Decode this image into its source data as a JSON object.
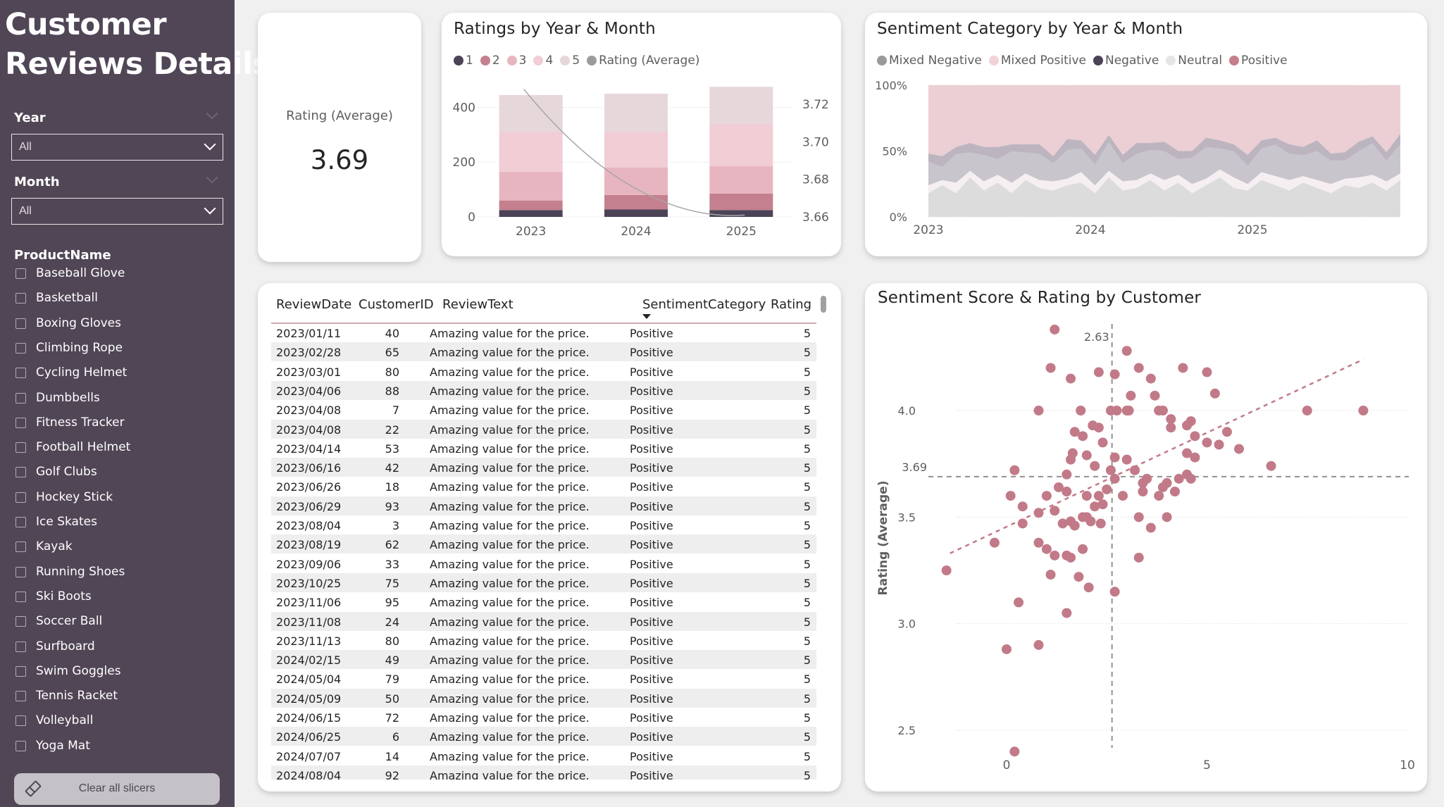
{
  "sidebar": {
    "title_line1": "Customer",
    "title_line2": "Reviews Details",
    "year_label": "Year",
    "year_value": "All",
    "month_label": "Month",
    "month_value": "All",
    "product_label": "ProductName",
    "products": [
      "Baseball Glove",
      "Basketball",
      "Boxing Gloves",
      "Climbing Rope",
      "Cycling Helmet",
      "Dumbbells",
      "Fitness Tracker",
      "Football Helmet",
      "Golf Clubs",
      "Hockey Stick",
      "Ice Skates",
      "Kayak",
      "Running Shoes",
      "Ski Boots",
      "Soccer Ball",
      "Surfboard",
      "Swim Goggles",
      "Tennis Racket",
      "Volleyball",
      "Yoga Mat"
    ],
    "clear_label": "Clear all slicers"
  },
  "kpi": {
    "label": "Rating (Average)",
    "value": "3.69"
  },
  "colors": {
    "r1": "#4c4357",
    "r2": "#c4808e",
    "r3": "#e7b5c0",
    "r4": "#f1cdd5",
    "r5": "#e6d7da",
    "avg": "#9b9b9b",
    "mixed_negative": "#9a9a9a",
    "mixed_positive": "#f0d3d8",
    "negative": "#4c4357",
    "neutral": "#e5e5e5",
    "positive": "#c77e8c",
    "scatter": "#c27a88"
  },
  "ratings_chart": {
    "title": "Ratings by Year & Month",
    "legend": [
      "1",
      "2",
      "3",
      "4",
      "5",
      "Rating (Average)"
    ],
    "chart_data": {
      "type": "bar",
      "categories": [
        "2023",
        "2024",
        "2025"
      ],
      "series": [
        {
          "name": "1",
          "values": [
            25,
            27,
            25
          ]
        },
        {
          "name": "2",
          "values": [
            35,
            53,
            60
          ]
        },
        {
          "name": "3",
          "values": [
            105,
            100,
            100
          ]
        },
        {
          "name": "4",
          "values": [
            145,
            130,
            155
          ]
        },
        {
          "name": "5",
          "values": [
            135,
            140,
            135
          ]
        }
      ],
      "line": {
        "name": "Rating (Average)",
        "values": [
          3.725,
          3.675,
          3.661
        ]
      },
      "ylim": [
        0,
        450
      ],
      "y_ticks": [
        0,
        200,
        400
      ],
      "y2_ticks": [
        "3.66",
        "3.68",
        "3.70",
        "3.72"
      ]
    }
  },
  "sentiment_chart": {
    "title": "Sentiment Category by Year & Month",
    "legend": [
      "Mixed Negative",
      "Mixed Positive",
      "Negative",
      "Neutral",
      "Positive"
    ],
    "chart_data": {
      "type": "area",
      "x_ticks": [
        "2023",
        "2024",
        "2025"
      ],
      "y_ticks": [
        "0%",
        "50%",
        "100%"
      ],
      "neutral": [
        18,
        24,
        18,
        30,
        20,
        26,
        18,
        28,
        22,
        20,
        24,
        26,
        18,
        30,
        20,
        22,
        28,
        20,
        26,
        18,
        24,
        30,
        22,
        20,
        28,
        24,
        20,
        26,
        22,
        18,
        24,
        22,
        26,
        20,
        28
      ],
      "mixed_positive": [
        6,
        4,
        8,
        5,
        7,
        6,
        8,
        5,
        6,
        7,
        5,
        8,
        6,
        5,
        7,
        6,
        5,
        8,
        6,
        7,
        5,
        6,
        8,
        5,
        6,
        7,
        8,
        5,
        6,
        7,
        5,
        8,
        6,
        7,
        5
      ],
      "mixed_negative": [
        18,
        10,
        22,
        14,
        20,
        12,
        24,
        16,
        20,
        14,
        22,
        18,
        16,
        22,
        14,
        20,
        18,
        22,
        12,
        20,
        24,
        16,
        20,
        14,
        18,
        24,
        20,
        16,
        22,
        18,
        14,
        20,
        24,
        16,
        22
      ],
      "negative": [
        6,
        8,
        5,
        7,
        6,
        9,
        5,
        6,
        7,
        5,
        8,
        6,
        7,
        5,
        6,
        8,
        5,
        7,
        6,
        5,
        7,
        6,
        5,
        8,
        6,
        5,
        7,
        6,
        8,
        5,
        6,
        7,
        5,
        6,
        8
      ]
    }
  },
  "table": {
    "headers": [
      "ReviewDate",
      "CustomerID",
      "ReviewText",
      "SentimentCategory",
      "Rating"
    ],
    "rows": [
      [
        "2023/01/11",
        "40",
        "Amazing value for the price.",
        "Positive",
        "5"
      ],
      [
        "2023/02/28",
        "65",
        "Amazing value for the price.",
        "Positive",
        "5"
      ],
      [
        "2023/03/01",
        "80",
        "Amazing value for the price.",
        "Positive",
        "5"
      ],
      [
        "2023/04/06",
        "88",
        "Amazing value for the price.",
        "Positive",
        "5"
      ],
      [
        "2023/04/08",
        "7",
        "Amazing value for the price.",
        "Positive",
        "5"
      ],
      [
        "2023/04/08",
        "22",
        "Amazing value for the price.",
        "Positive",
        "5"
      ],
      [
        "2023/04/14",
        "53",
        "Amazing value for the price.",
        "Positive",
        "5"
      ],
      [
        "2023/06/16",
        "42",
        "Amazing value for the price.",
        "Positive",
        "5"
      ],
      [
        "2023/06/26",
        "18",
        "Amazing value for the price.",
        "Positive",
        "5"
      ],
      [
        "2023/06/29",
        "93",
        "Amazing value for the price.",
        "Positive",
        "5"
      ],
      [
        "2023/08/04",
        "3",
        "Amazing value for the price.",
        "Positive",
        "5"
      ],
      [
        "2023/08/19",
        "62",
        "Amazing value for the price.",
        "Positive",
        "5"
      ],
      [
        "2023/09/06",
        "33",
        "Amazing value for the price.",
        "Positive",
        "5"
      ],
      [
        "2023/10/25",
        "75",
        "Amazing value for the price.",
        "Positive",
        "5"
      ],
      [
        "2023/11/06",
        "95",
        "Amazing value for the price.",
        "Positive",
        "5"
      ],
      [
        "2023/11/08",
        "24",
        "Amazing value for the price.",
        "Positive",
        "5"
      ],
      [
        "2023/11/13",
        "80",
        "Amazing value for the price.",
        "Positive",
        "5"
      ],
      [
        "2024/02/15",
        "49",
        "Amazing value for the price.",
        "Positive",
        "5"
      ],
      [
        "2024/05/04",
        "79",
        "Amazing value for the price.",
        "Positive",
        "5"
      ],
      [
        "2024/05/09",
        "50",
        "Amazing value for the price.",
        "Positive",
        "5"
      ],
      [
        "2024/06/15",
        "72",
        "Amazing value for the price.",
        "Positive",
        "5"
      ],
      [
        "2024/06/25",
        "6",
        "Amazing value for the price.",
        "Positive",
        "5"
      ],
      [
        "2024/07/07",
        "14",
        "Amazing value for the price.",
        "Positive",
        "5"
      ],
      [
        "2024/08/04",
        "92",
        "Amazing value for the price.",
        "Positive",
        "5"
      ]
    ]
  },
  "scatter_chart": {
    "title": "Sentiment Score & Rating by Customer",
    "ylabel": "Rating (Average)",
    "chart_data": {
      "type": "scatter",
      "xlim": [
        -1.5,
        10
      ],
      "ylim": [
        2.35,
        4.35
      ],
      "x_ticks": [
        "0",
        "5",
        "10"
      ],
      "y_ticks": [
        "2.5",
        "3.0",
        "3.5",
        "4.0"
      ],
      "x_ref": {
        "value": 2.63,
        "label": "2.63"
      },
      "y_ref": {
        "value": 3.69,
        "label": "3.69"
      },
      "trend": [
        [
          -1.5,
          3.33
        ],
        [
          8.9,
          4.24
        ]
      ],
      "points": [
        [
          1.2,
          4.38
        ],
        [
          1.1,
          4.2
        ],
        [
          1.6,
          4.15
        ],
        [
          2.3,
          4.18
        ],
        [
          2.7,
          4.17
        ],
        [
          3.0,
          4.28
        ],
        [
          3.3,
          4.2
        ],
        [
          3.1,
          4.07
        ],
        [
          3.6,
          4.15
        ],
        [
          3.7,
          4.07
        ],
        [
          4.4,
          4.2
        ],
        [
          5.0,
          4.18
        ],
        [
          5.2,
          4.08
        ],
        [
          0.8,
          4.0
        ],
        [
          1.85,
          4.0
        ],
        [
          2.6,
          4.0
        ],
        [
          2.75,
          4.0
        ],
        [
          3.0,
          4.0
        ],
        [
          3.05,
          4.0
        ],
        [
          3.8,
          4.0
        ],
        [
          3.9,
          4.0
        ],
        [
          7.5,
          4.0
        ],
        [
          8.9,
          4.0
        ],
        [
          1.7,
          3.9
        ],
        [
          2.15,
          3.93
        ],
        [
          2.3,
          3.92
        ],
        [
          1.9,
          3.88
        ],
        [
          2.4,
          3.85
        ],
        [
          1.65,
          3.8
        ],
        [
          2.0,
          3.79
        ],
        [
          1.6,
          3.77
        ],
        [
          2.7,
          3.78
        ],
        [
          3.0,
          3.77
        ],
        [
          4.1,
          3.96
        ],
        [
          4.5,
          3.93
        ],
        [
          4.6,
          3.95
        ],
        [
          4.1,
          3.92
        ],
        [
          4.7,
          3.88
        ],
        [
          5.5,
          3.9
        ],
        [
          5.0,
          3.85
        ],
        [
          5.3,
          3.84
        ],
        [
          5.8,
          3.82
        ],
        [
          4.5,
          3.8
        ],
        [
          4.7,
          3.78
        ],
        [
          6.6,
          3.74
        ],
        [
          0.2,
          3.72
        ],
        [
          1.5,
          3.7
        ],
        [
          2.2,
          3.74
        ],
        [
          2.6,
          3.72
        ],
        [
          2.7,
          3.68
        ],
        [
          3.4,
          3.66
        ],
        [
          3.5,
          3.68
        ],
        [
          4.0,
          3.66
        ],
        [
          4.3,
          3.68
        ],
        [
          4.6,
          3.68
        ],
        [
          4.5,
          3.7
        ],
        [
          3.2,
          3.72
        ],
        [
          3.9,
          3.64
        ],
        [
          0.1,
          3.6
        ],
        [
          1.0,
          3.6
        ],
        [
          1.3,
          3.64
        ],
        [
          1.5,
          3.62
        ],
        [
          2.0,
          3.6
        ],
        [
          2.3,
          3.6
        ],
        [
          2.5,
          3.63
        ],
        [
          2.9,
          3.6
        ],
        [
          3.4,
          3.62
        ],
        [
          3.8,
          3.6
        ],
        [
          4.2,
          3.62
        ],
        [
          2.4,
          3.56
        ],
        [
          2.2,
          3.55
        ],
        [
          0.4,
          3.55
        ],
        [
          0.8,
          3.52
        ],
        [
          1.2,
          3.53
        ],
        [
          1.6,
          3.48
        ],
        [
          1.9,
          3.5
        ],
        [
          2.0,
          3.5
        ],
        [
          2.35,
          3.47
        ],
        [
          2.1,
          3.48
        ],
        [
          3.3,
          3.5
        ],
        [
          4.0,
          3.5
        ],
        [
          1.4,
          3.47
        ],
        [
          1.7,
          3.46
        ],
        [
          0.4,
          3.47
        ],
        [
          3.6,
          3.45
        ],
        [
          -0.3,
          3.38
        ],
        [
          0.8,
          3.38
        ],
        [
          1.0,
          3.35
        ],
        [
          1.2,
          3.32
        ],
        [
          1.5,
          3.32
        ],
        [
          1.6,
          3.31
        ],
        [
          1.9,
          3.35
        ],
        [
          3.3,
          3.31
        ],
        [
          -1.5,
          3.25
        ],
        [
          1.1,
          3.23
        ],
        [
          1.8,
          3.22
        ],
        [
          2.05,
          3.17
        ],
        [
          2.7,
          3.15
        ],
        [
          0.3,
          3.1
        ],
        [
          1.5,
          3.05
        ],
        [
          0.0,
          2.88
        ],
        [
          0.8,
          2.9
        ],
        [
          0.2,
          2.4
        ]
      ]
    }
  }
}
